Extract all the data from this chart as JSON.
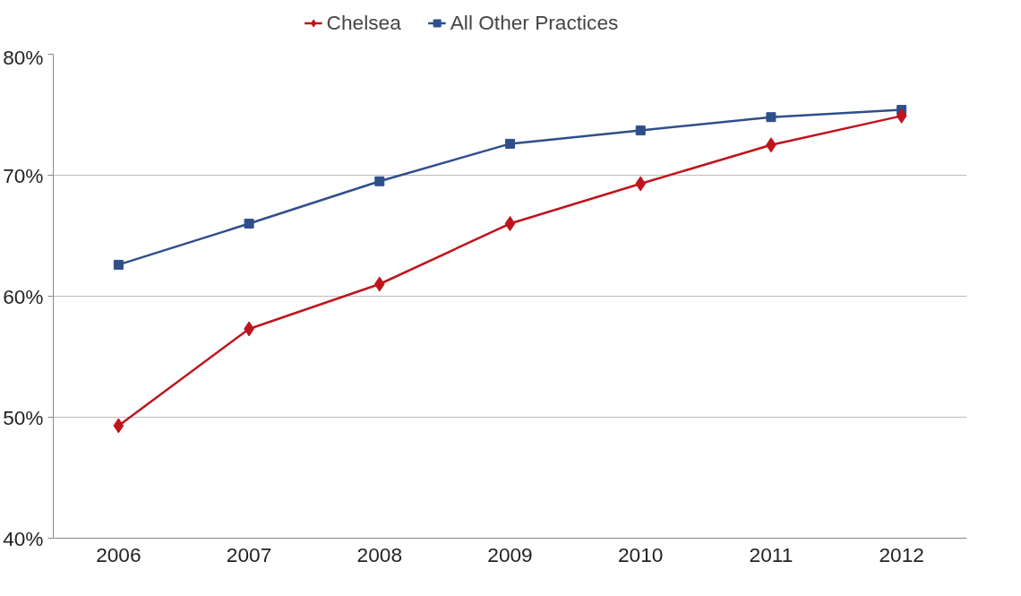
{
  "chart_data": {
    "type": "line",
    "categories": [
      "2006",
      "2007",
      "2008",
      "2009",
      "2010",
      "2011",
      "2012"
    ],
    "series": [
      {
        "name": "Chelsea",
        "color": "#c0141c",
        "marker": "diamond",
        "values": [
          49.3,
          57.3,
          61.0,
          66.0,
          69.3,
          72.5,
          74.9
        ]
      },
      {
        "name": "All Other Practices",
        "color": "#2f4f8a",
        "marker": "square",
        "values": [
          62.6,
          66.0,
          69.5,
          72.6,
          73.7,
          74.8,
          75.4
        ]
      }
    ],
    "ylim": [
      40,
      80
    ],
    "yticks": [
      {
        "value": 40,
        "label": "40%"
      },
      {
        "value": 50,
        "label": "50%"
      },
      {
        "value": 60,
        "label": "60%"
      },
      {
        "value": 70,
        "label": "70%"
      },
      {
        "value": 80,
        "label": "80%"
      }
    ],
    "grid": "y",
    "legend": "top",
    "line_style": "solid"
  }
}
